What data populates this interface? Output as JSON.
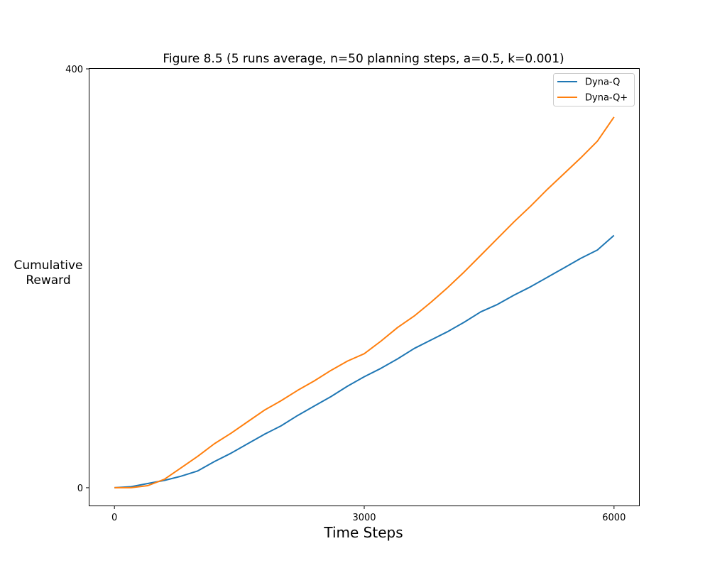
{
  "chart_data": {
    "type": "line",
    "title": "Figure 8.5 (5 runs average, n=50 planning steps, a=0.5, k=0.001)",
    "xlabel": "Time Steps",
    "ylabel_line1": "Cumulative",
    "ylabel_line2": "Reward",
    "xlim": [
      -300,
      6300
    ],
    "ylim": [
      -17,
      400
    ],
    "xticks": [
      0,
      3000,
      6000
    ],
    "xtick_labels": [
      "0",
      "3000",
      "6000"
    ],
    "yticks": [
      0,
      400
    ],
    "ytick_labels": [
      "0",
      "400"
    ],
    "grid": false,
    "legend_position": "top-right",
    "series": [
      {
        "name": "Dyna-Q",
        "color": "#1f77b4",
        "x": [
          0,
          200,
          400,
          600,
          800,
          1000,
          1200,
          1400,
          1600,
          1800,
          2000,
          2200,
          2400,
          2600,
          2800,
          3000,
          3200,
          3400,
          3600,
          3800,
          4000,
          4200,
          4400,
          4600,
          4800,
          5000,
          5200,
          5400,
          5600,
          5800,
          6000
        ],
        "y": [
          0,
          1,
          4,
          7,
          11,
          16,
          25,
          33,
          42,
          51,
          59,
          69,
          78,
          87,
          97,
          106,
          114,
          123,
          133,
          141,
          149,
          158,
          168,
          175,
          184,
          192,
          201,
          210,
          219,
          227,
          241
        ]
      },
      {
        "name": "Dyna-Q+",
        "color": "#ff7f0e",
        "x": [
          0,
          200,
          400,
          600,
          800,
          1000,
          1200,
          1400,
          1600,
          1800,
          2000,
          2200,
          2400,
          2600,
          2800,
          3000,
          3200,
          3400,
          3600,
          3800,
          4000,
          4200,
          4400,
          4600,
          4800,
          5000,
          5200,
          5400,
          5600,
          5800,
          6000
        ],
        "y": [
          0,
          0,
          2,
          8,
          19,
          30,
          42,
          52,
          63,
          74,
          83,
          93,
          102,
          112,
          121,
          128,
          140,
          153,
          164,
          177,
          191,
          206,
          222,
          238,
          254,
          269,
          285,
          300,
          315,
          331,
          354
        ]
      }
    ]
  }
}
